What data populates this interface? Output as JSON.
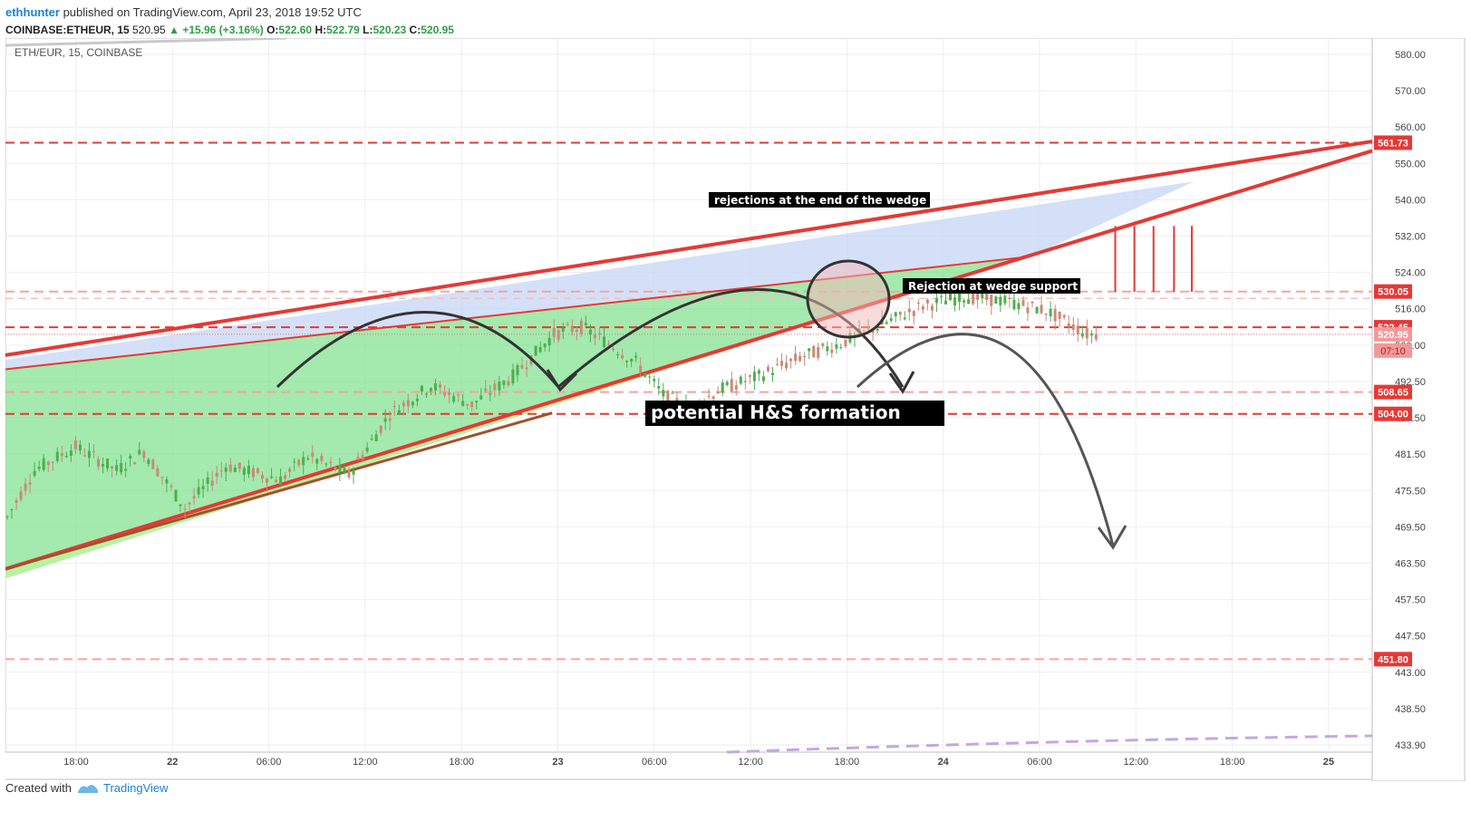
{
  "header": {
    "author": "ethhunter",
    "published": "published on TradingView.com, April 23, 2018 19:52 UTC",
    "symbol": "COINBASE:ETHEUR, 15",
    "last": "520.95",
    "change": "+15.96 (+3.16%)",
    "o_label": "O:",
    "o_value": "522.60",
    "h_label": "H:",
    "h_value": "522.79",
    "l_label": "L:",
    "l_value": "520.23",
    "c_label": "C:",
    "c_value": "520.95"
  },
  "footer": {
    "created_with": "Created with",
    "brand": "TradingView"
  },
  "chart_data": {
    "type": "candlestick",
    "title": "ETH/EUR, 15, COINBASE",
    "ylim": [
      432,
      584
    ],
    "y_ticks": [
      "580.00",
      "570.00",
      "560.00",
      "550.00",
      "540.00",
      "532.00",
      "524.00",
      "516.00",
      "500.00",
      "492.50",
      "487.50",
      "481.50",
      "475.50",
      "469.50",
      "463.50",
      "457.50",
      "447.50",
      "443.00",
      "438.50",
      "433.90"
    ],
    "x_ticks": [
      "18:00",
      "22",
      "06:00",
      "12:00",
      "18:00",
      "23",
      "06:00",
      "12:00",
      "18:00",
      "24",
      "06:00",
      "12:00",
      "18:00",
      "25"
    ],
    "price_tags": [
      {
        "value": 561.73,
        "label": "561.73",
        "color": "#e53935"
      },
      {
        "value": 530.05,
        "label": "530.05",
        "color": "#e53935"
      },
      {
        "value": 522.45,
        "label": "522.45",
        "color": "#e53935"
      },
      {
        "value": 520.95,
        "label": "520.95",
        "color": "#ef9a9a"
      },
      {
        "value": 508.65,
        "label": "508.65",
        "color": "#e53935"
      },
      {
        "value": 504.0,
        "label": "504.00",
        "color": "#e53935"
      },
      {
        "value": 451.8,
        "label": "451.80",
        "color": "#e53935"
      }
    ],
    "countdown": "07:10",
    "annotations": [
      {
        "text": "rejections at the end of the wedge"
      },
      {
        "text": "Rejection at wedge support"
      },
      {
        "text": "potential H&S formation"
      }
    ],
    "colors": {
      "up": "#26a69a",
      "down": "#ef5350",
      "support": "#e53935",
      "wedge_fill": "#7ee08a",
      "upper_fill": "#c5d5f5"
    }
  }
}
